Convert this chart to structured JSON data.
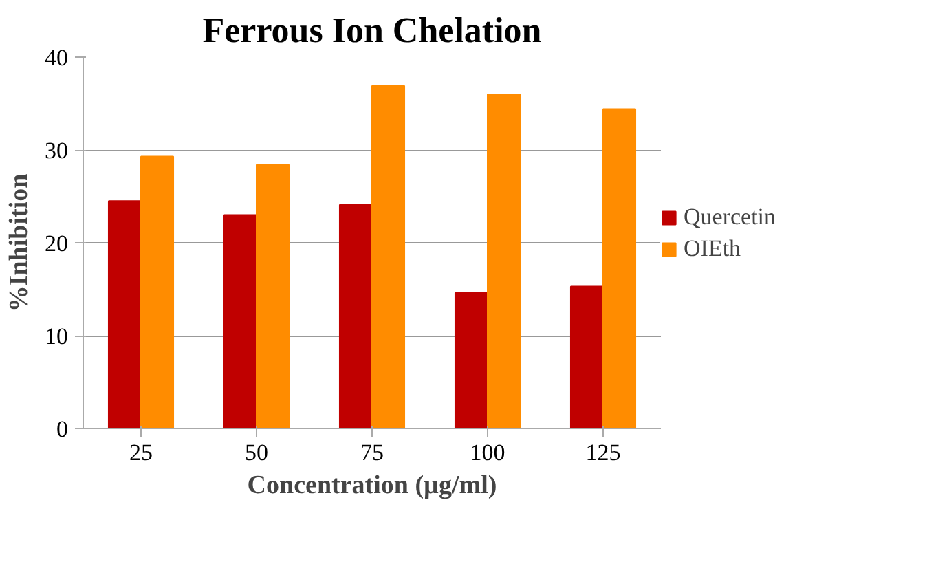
{
  "chart_data": {
    "type": "bar",
    "title": "Ferrous Ion Chelation",
    "xlabel": "Concentration (µg/ml)",
    "ylabel": "%Inhibition",
    "categories": [
      "25",
      "50",
      "75",
      "100",
      "125"
    ],
    "series": [
      {
        "name": "Quercetin",
        "color": "#c00000",
        "values": [
          24.5,
          23.0,
          24.1,
          14.6,
          15.3
        ]
      },
      {
        "name": "OIEth",
        "color": "#ff8c00",
        "values": [
          29.3,
          28.4,
          36.9,
          36.0,
          34.4
        ]
      }
    ],
    "ylim": [
      0,
      40
    ],
    "yticks": [
      0,
      10,
      20,
      30,
      40
    ],
    "grid": "y",
    "legend": "right"
  }
}
